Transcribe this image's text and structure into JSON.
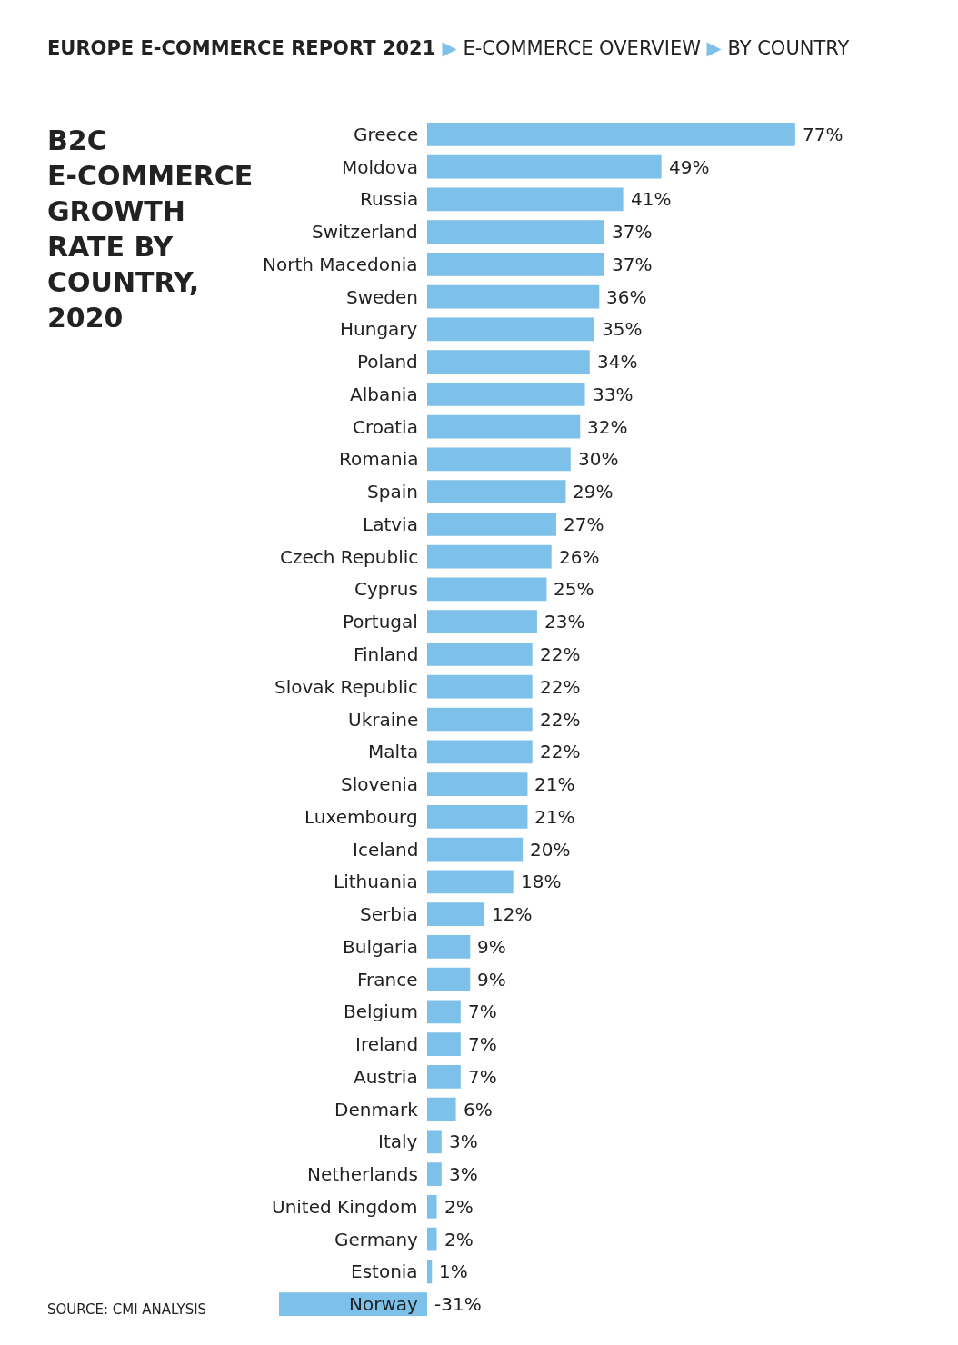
{
  "chart_data": {
    "type": "bar",
    "orientation": "horizontal",
    "title": "EUROPE E-COMMERCE REPORT 2021 ▶ E-COMMERCE OVERVIEW ▶ BY COUNTRY",
    "subtitle": "B2C\nE-COMMERCE\nGROWTH\nRATE BY\nCOUNTRY,\n2020",
    "annotations": [
      "SOURCE: CMI ANALYSIS"
    ],
    "categories": [
      "Greece",
      "Moldova",
      "Russia",
      "Switzerland",
      "North Macedonia",
      "Sweden",
      "Hungary",
      "Poland",
      "Albania",
      "Croatia",
      "Romania",
      "Spain",
      "Latvia",
      "Czech Republic",
      "Cyprus",
      "Portugal",
      "Finland",
      "Slovak Republic",
      "Ukraine",
      "Malta",
      "Slovenia",
      "Luxembourg",
      "Iceland",
      "Lithuania",
      "Serbia",
      "Bulgaria",
      "France",
      "Belgium",
      "Ireland",
      "Austria",
      "Denmark",
      "Italy",
      "Netherlands",
      "United Kingdom",
      "Germany",
      "Estonia",
      "Norway"
    ],
    "values": [
      77,
      49,
      41,
      37,
      37,
      36,
      35,
      34,
      33,
      32,
      30,
      29,
      27,
      26,
      25,
      23,
      22,
      22,
      22,
      22,
      21,
      21,
      20,
      18,
      12,
      9,
      9,
      7,
      7,
      7,
      6,
      3,
      3,
      2,
      2,
      1,
      -31
    ],
    "value_labels": [
      "77%",
      "49%",
      "41%",
      "37%",
      "37%",
      "36%",
      "35%",
      "34%",
      "33%",
      "32%",
      "30%",
      "29%",
      "27%",
      "26%",
      "25%",
      "23%",
      "22%",
      "22%",
      "22%",
      "22%",
      "21%",
      "21%",
      "20%",
      "18%",
      "12%",
      "9%",
      "9%",
      "7%",
      "7%",
      "7%",
      "6%",
      "3%",
      "3%",
      "2%",
      "2%",
      "1%",
      "-31%"
    ],
    "color": "#7dc1ea",
    "legend": false
  }
}
